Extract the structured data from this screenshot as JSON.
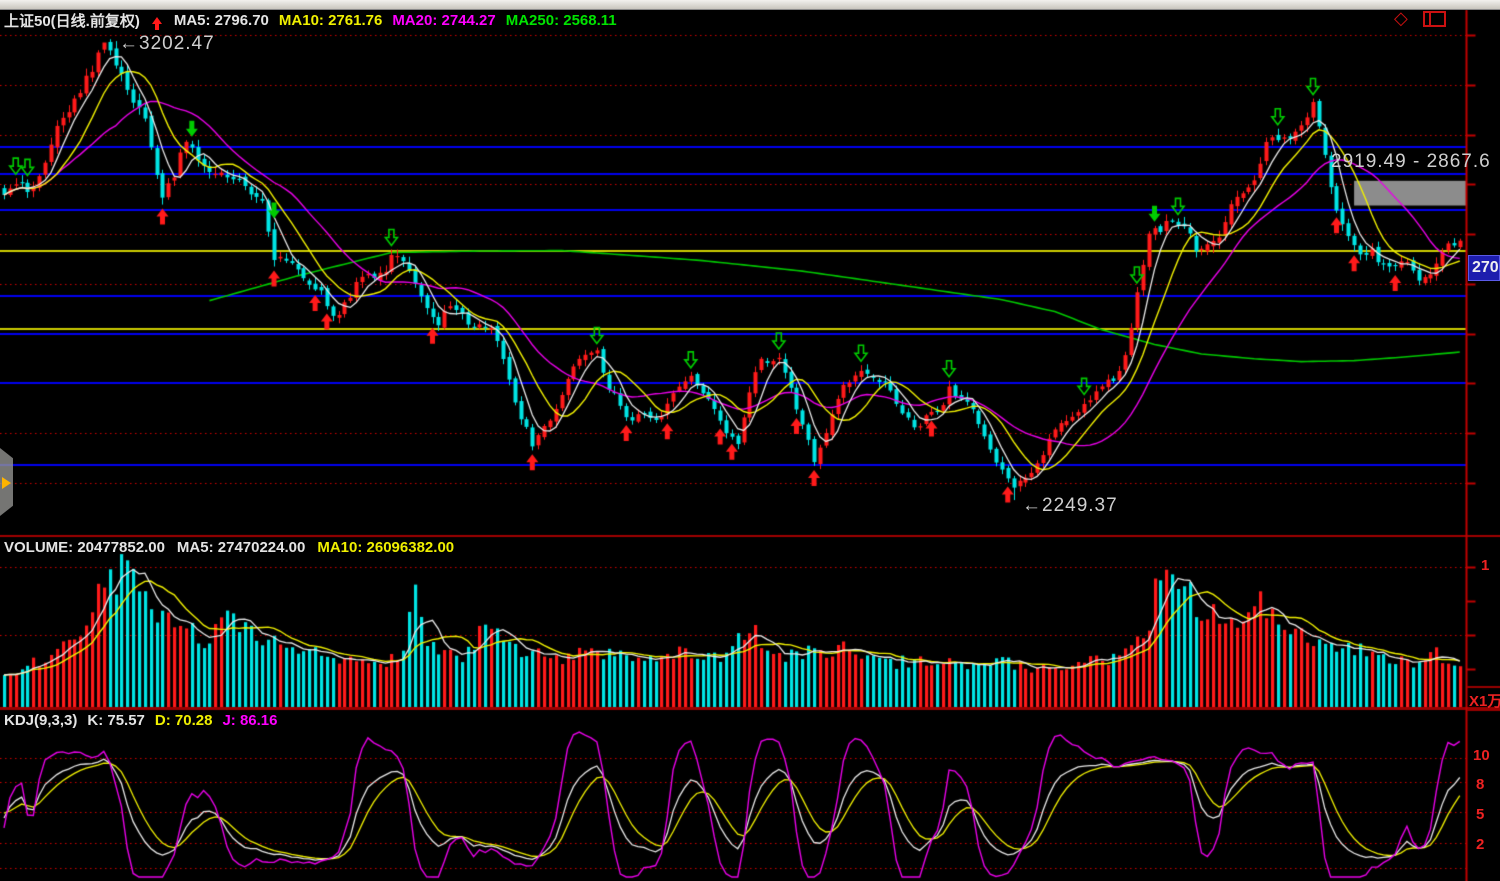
{
  "header": {
    "title": "上证50(日线.前复权)",
    "ma5": "MA5: 2796.70",
    "ma10": "MA10: 2761.76",
    "ma20": "MA20: 2744.27",
    "ma250": "MA250: 2568.11"
  },
  "volume_header": {
    "volume": "VOLUME: 20477852.00",
    "ma5": "MA5: 27470224.00",
    "ma10": "MA10: 26096382.00"
  },
  "kdj_header": {
    "name": "KDJ(9,3,3)",
    "k": "K: 75.57",
    "d": "D: 70.28",
    "j": "J: 86.16"
  },
  "annotations": {
    "high": "←3202.47",
    "low": "←2249.37",
    "gap": "2919.49 - 2867.6"
  },
  "axis": {
    "price_label": "270",
    "volume_top": "1",
    "volume_unit": "X1万",
    "kdj_labels": [
      "10",
      "8",
      "5",
      "2"
    ]
  },
  "icons": {
    "diamond": "◇"
  },
  "colors": {
    "up_candle": "#ff1a1a",
    "down_candle": "#00e4e4",
    "ma5": "#e8e8e8",
    "ma10": "#f0f000",
    "ma20": "#e800e8",
    "ma250": "#00c800",
    "grid_dotted": "#d40000",
    "hline_blue": "#0000f0",
    "hline_yellow": "#cfcf00",
    "axis_red": "#c00000",
    "gap_box": "#8c8c8c"
  },
  "chart_data": [
    {
      "id": "price",
      "type": "candlestick",
      "symbol": "上证50",
      "period": "日线",
      "adjust": "前复权",
      "ma_values": {
        "MA5": 2796.7,
        "MA10": 2761.76,
        "MA20": 2744.27,
        "MA250": 2568.11
      },
      "high_annotation": 3202.47,
      "low_annotation": 2249.37,
      "gap_zone": {
        "top": 2919.49,
        "bottom": 2867.6
      },
      "grid_prices": [
        3225.6,
        3120.6,
        3015.7,
        2912.8,
        2807.9,
        2702.9,
        2598.0,
        2495.1,
        2390.2,
        2285.3
      ],
      "blue_lines": [
        2990.5,
        2933.8,
        2858.2,
        2677.7,
        2598.0,
        2495.1,
        2323.0
      ],
      "yellow_lines": [
        2772.1,
        2608.5
      ],
      "close_keypoints": [
        [
          0,
          2880
        ],
        [
          5,
          2911
        ],
        [
          9,
          3026
        ],
        [
          14,
          3142
        ],
        [
          18,
          3198
        ],
        [
          21,
          3131
        ],
        [
          24,
          3027
        ],
        [
          27,
          2901
        ],
        [
          31,
          2985
        ],
        [
          34,
          2953
        ],
        [
          38,
          2922
        ],
        [
          41,
          2911
        ],
        [
          44,
          2880
        ],
        [
          46,
          2744
        ],
        [
          49,
          2765
        ],
        [
          51,
          2723
        ],
        [
          54,
          2670
        ],
        [
          56,
          2649
        ],
        [
          59,
          2681
        ],
        [
          61,
          2702
        ],
        [
          64,
          2733
        ],
        [
          66,
          2765
        ],
        [
          69,
          2712
        ],
        [
          72,
          2670
        ],
        [
          74,
          2618
        ],
        [
          77,
          2649
        ],
        [
          79,
          2639
        ],
        [
          82,
          2607
        ],
        [
          84,
          2576
        ],
        [
          87,
          2471
        ],
        [
          90,
          2356
        ],
        [
          93,
          2419
        ],
        [
          95,
          2482
        ],
        [
          98,
          2534
        ],
        [
          101,
          2566
        ],
        [
          103,
          2492
        ],
        [
          106,
          2408
        ],
        [
          109,
          2440
        ],
        [
          112,
          2408
        ],
        [
          114,
          2471
        ],
        [
          117,
          2524
        ],
        [
          119,
          2461
        ],
        [
          122,
          2408
        ],
        [
          125,
          2377
        ],
        [
          127,
          2461
        ],
        [
          129,
          2544
        ],
        [
          132,
          2565
        ],
        [
          135,
          2429
        ],
        [
          138,
          2345
        ],
        [
          141,
          2419
        ],
        [
          143,
          2482
        ],
        [
          146,
          2534
        ],
        [
          148,
          2503
        ],
        [
          151,
          2471
        ],
        [
          153,
          2440
        ],
        [
          156,
          2398
        ],
        [
          159,
          2429
        ],
        [
          161,
          2492
        ],
        [
          164,
          2450
        ],
        [
          166,
          2408
        ],
        [
          169,
          2335
        ],
        [
          172,
          2272
        ],
        [
          175,
          2314
        ],
        [
          177,
          2356
        ],
        [
          180,
          2398
        ],
        [
          182,
          2429
        ],
        [
          185,
          2461
        ],
        [
          187,
          2482
        ],
        [
          190,
          2524
        ],
        [
          192,
          2607
        ],
        [
          195,
          2796
        ],
        [
          198,
          2848
        ],
        [
          200,
          2817
        ],
        [
          203,
          2775
        ],
        [
          205,
          2796
        ],
        [
          208,
          2817
        ],
        [
          210,
          2880
        ],
        [
          213,
          2943
        ],
        [
          215,
          2985
        ],
        [
          218,
          3006
        ],
        [
          220,
          3037
        ],
        [
          223,
          3064
        ],
        [
          225,
          2964
        ],
        [
          228,
          2838
        ],
        [
          231,
          2744
        ],
        [
          233,
          2775
        ],
        [
          237,
          2742
        ],
        [
          239,
          2738
        ],
        [
          242,
          2722
        ],
        [
          244,
          2750
        ],
        [
          247,
          2782
        ],
        [
          248,
          2790
        ]
      ],
      "ma250_keypoints": [
        [
          35,
          2668
        ],
        [
          50,
          2720
        ],
        [
          66,
          2769
        ],
        [
          80,
          2772
        ],
        [
          95,
          2773
        ],
        [
          108,
          2762
        ],
        [
          119,
          2752
        ],
        [
          136,
          2730
        ],
        [
          153,
          2700
        ],
        [
          170,
          2670
        ],
        [
          179,
          2645
        ],
        [
          187,
          2607
        ],
        [
          196,
          2576
        ],
        [
          204,
          2556
        ],
        [
          213,
          2546
        ],
        [
          221,
          2540
        ],
        [
          230,
          2542
        ],
        [
          238,
          2549
        ],
        [
          248,
          2560
        ]
      ],
      "signals": {
        "buy_indices": [
          27,
          46,
          53,
          55,
          73,
          90,
          106,
          113,
          122,
          124,
          135,
          138,
          158,
          171,
          227,
          230,
          237
        ],
        "sell_solid_indices": [
          32,
          46,
          196
        ],
        "sell_hollow_indices": [
          2,
          4,
          66,
          101,
          117,
          132,
          146,
          161,
          184,
          193,
          200,
          217,
          223
        ]
      }
    },
    {
      "id": "volume",
      "type": "bar",
      "label": "VOLUME",
      "current": 20477852.0,
      "ma5": 27470224.0,
      "ma10": 26096382.0,
      "unit": "万",
      "axis_top_label": "1",
      "axis_unit_label": "X1万",
      "volume_keypoints_wan": [
        [
          0,
          2450
        ],
        [
          8,
          3500
        ],
        [
          14,
          6300
        ],
        [
          18,
          9100
        ],
        [
          20,
          9450
        ],
        [
          23,
          8400
        ],
        [
          26,
          7000
        ],
        [
          30,
          5600
        ],
        [
          34,
          4900
        ],
        [
          38,
          5950
        ],
        [
          42,
          5250
        ],
        [
          46,
          4550
        ],
        [
          50,
          4060
        ],
        [
          55,
          3500
        ],
        [
          60,
          3360
        ],
        [
          64,
          3150
        ],
        [
          68,
          3500
        ],
        [
          70,
          9100
        ],
        [
          72,
          4200
        ],
        [
          76,
          3640
        ],
        [
          80,
          3850
        ],
        [
          82,
          6650
        ],
        [
          86,
          4200
        ],
        [
          90,
          3850
        ],
        [
          95,
          3360
        ],
        [
          100,
          4340
        ],
        [
          104,
          3640
        ],
        [
          110,
          3220
        ],
        [
          116,
          3920
        ],
        [
          122,
          3360
        ],
        [
          128,
          5950
        ],
        [
          130,
          3640
        ],
        [
          136,
          3920
        ],
        [
          142,
          4200
        ],
        [
          146,
          3850
        ],
        [
          152,
          3220
        ],
        [
          158,
          3500
        ],
        [
          164,
          2940
        ],
        [
          170,
          3150
        ],
        [
          176,
          2800
        ],
        [
          182,
          3080
        ],
        [
          188,
          3360
        ],
        [
          192,
          3850
        ],
        [
          195,
          6300
        ],
        [
          197,
          9800
        ],
        [
          199,
          9100
        ],
        [
          201,
          8400
        ],
        [
          203,
          7350
        ],
        [
          206,
          6650
        ],
        [
          209,
          5950
        ],
        [
          212,
          7700
        ],
        [
          215,
          7000
        ],
        [
          218,
          5950
        ],
        [
          221,
          5250
        ],
        [
          224,
          4900
        ],
        [
          228,
          4340
        ],
        [
          232,
          3850
        ],
        [
          236,
          3360
        ],
        [
          240,
          3150
        ],
        [
          244,
          3850
        ],
        [
          246,
          2800
        ],
        [
          248,
          2660
        ]
      ]
    },
    {
      "id": "kdj",
      "type": "line",
      "name": "KDJ",
      "params": "9,3,3",
      "k_value": 75.57,
      "d_value": 70.28,
      "j_value": 86.16,
      "ylim": [
        0,
        100
      ],
      "gridlines": [
        100,
        80,
        50,
        20,
        0
      ],
      "axis_labels_visible": [
        "10",
        "8",
        "5",
        "2"
      ]
    }
  ]
}
